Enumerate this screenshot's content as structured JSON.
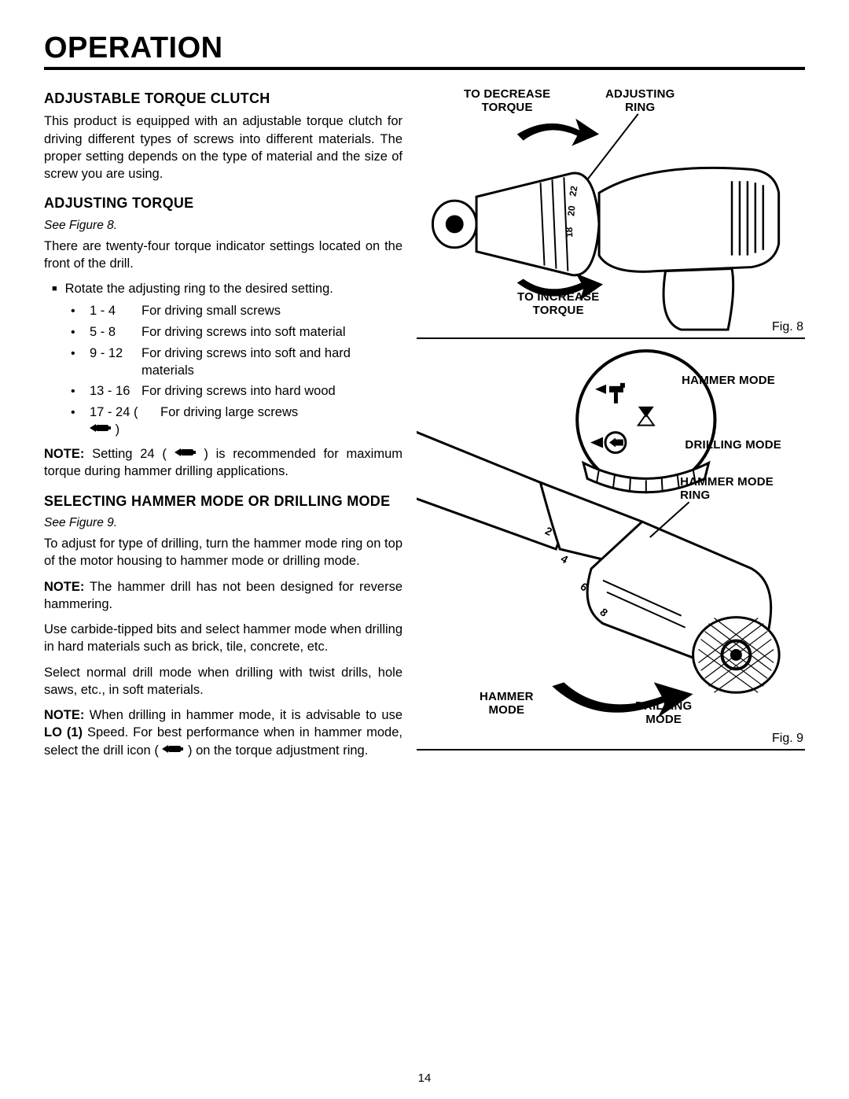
{
  "page_title": "OPERATION",
  "page_number": "14",
  "sections": {
    "s1": {
      "heading": "ADJUSTABLE TORQUE CLUTCH",
      "p1": "This product is equipped with an adjustable torque clutch for driving different types of screws into different materials. The proper setting depends on the type of material and the size of screw you are using."
    },
    "s2": {
      "heading": "ADJUSTING TORQUE",
      "see": "See Figure 8.",
      "p1": "There are twenty-four torque indicator settings located on the front of the drill.",
      "bullet": "Rotate the adjusting ring to the desired setting.",
      "settings": [
        {
          "range": "1 - 4",
          "desc": "For driving small screws"
        },
        {
          "range": "5 - 8",
          "desc": "For driving screws into soft material"
        },
        {
          "range": "9 - 12",
          "desc": "For driving screws into soft and hard materials"
        },
        {
          "range": "13 - 16",
          "desc": "For driving screws into hard wood"
        },
        {
          "range": "17 - 24",
          "desc": "For driving large screws",
          "icon": true
        }
      ],
      "note_prefix": "NOTE:",
      "note_body_a": " Setting 24 ( ",
      "note_body_b": " ) is recommended for maximum torque during hammer drilling applications."
    },
    "s3": {
      "heading": "SELECTING HAMMER MODE OR DRILLING MODE",
      "see": "See Figure 9.",
      "p1": "To adjust for type of drilling, turn the hammer mode ring on top of the motor housing to hammer mode or drilling mode.",
      "note1_prefix": "NOTE:",
      "note1_body": " The hammer drill has not been designed for reverse hammering.",
      "p2": "Use carbide-tipped bits and select hammer mode when drilling in hard materials such as brick, tile, concrete, etc.",
      "p3": "Select normal drill mode when drilling with twist drills, hole saws, etc., in soft materials.",
      "note2_prefix": "NOTE:",
      "note2_body_a": " When drilling in hammer mode, it is advisable to use ",
      "note2_lo": "LO (1)",
      "note2_body_b": " Speed. For best performance when in hammer mode, select the drill icon ( ",
      "note2_body_c": " ) on the torque adjustment ring."
    }
  },
  "fig8": {
    "caption": "Fig. 8",
    "callouts": {
      "decrease": "TO DECREASE\nTORQUE",
      "adjring": "ADJUSTING\nRING",
      "increase": "TO INCREASE\nTORQUE"
    }
  },
  "fig9": {
    "caption": "Fig. 9",
    "callouts": {
      "hammer_mode": "HAMMER MODE",
      "drilling_mode": "DRILLING MODE",
      "ring": "HAMMER MODE\nRING",
      "hammer": "HAMMER\nMODE",
      "drilling": "DRILLING\nMODE"
    }
  },
  "style": {
    "bg": "#ffffff",
    "fg": "#000000",
    "title_fontsize": 38,
    "h2_fontsize": 18,
    "body_fontsize": 16.5,
    "rule_width": 4
  }
}
